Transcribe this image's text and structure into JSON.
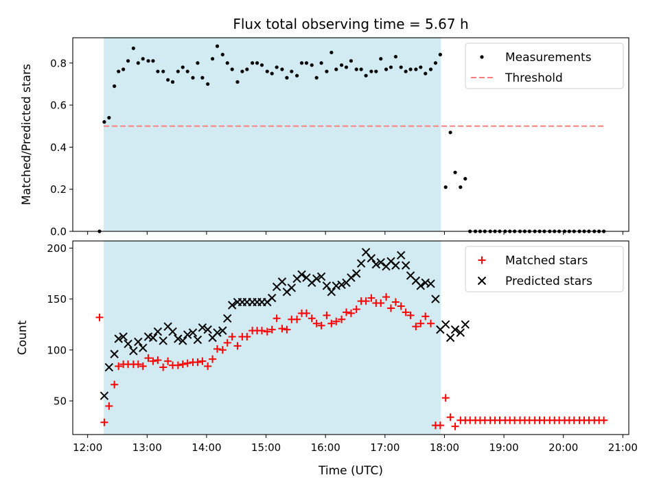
{
  "figure": {
    "title": "Flux total observing time = 5.67 h",
    "xlabel": "Time (UTC)"
  },
  "colors": {
    "span": "#add8e6",
    "measurements": "#000000",
    "threshold": "#ff7f7f",
    "matched": "#ff0000",
    "predicted": "#000000"
  },
  "chart_data": [
    {
      "type": "scatter",
      "panel": "top",
      "ylabel": "Matched/Predicted stars",
      "x_unit": "hours UTC",
      "xlim": [
        11.75,
        21.1
      ],
      "ylim": [
        0,
        0.92
      ],
      "xticks": [
        12,
        13,
        14,
        15,
        16,
        17,
        18,
        19,
        20,
        21
      ],
      "xtick_labels": [
        "12:00",
        "13:00",
        "14:00",
        "15:00",
        "16:00",
        "17:00",
        "18:00",
        "19:00",
        "20:00",
        "21:00"
      ],
      "yticks": [
        0.0,
        0.2,
        0.4,
        0.6,
        0.8
      ],
      "ytick_labels": [
        "0.0",
        "0.2",
        "0.4",
        "0.6",
        "0.8"
      ],
      "shaded_span": [
        12.27,
        17.94
      ],
      "legend": {
        "position": "upper right",
        "entries": [
          "Measurements",
          "Threshold"
        ]
      },
      "threshold": {
        "name": "Threshold",
        "y": 0.5,
        "x": [
          12.27,
          20.7
        ]
      },
      "series": [
        {
          "name": "Measurements",
          "marker": "dot",
          "x": [
            12.2,
            12.28,
            12.36,
            12.45,
            12.52,
            12.6,
            12.68,
            12.77,
            12.85,
            12.93,
            13.02,
            13.1,
            13.18,
            13.27,
            13.35,
            13.43,
            13.52,
            13.6,
            13.68,
            13.77,
            13.85,
            13.93,
            14.02,
            14.1,
            14.18,
            14.27,
            14.35,
            14.43,
            14.52,
            14.6,
            14.68,
            14.77,
            14.85,
            14.93,
            15.02,
            15.1,
            15.18,
            15.27,
            15.35,
            15.43,
            15.52,
            15.6,
            15.68,
            15.77,
            15.85,
            15.93,
            16.02,
            16.1,
            16.18,
            16.27,
            16.35,
            16.43,
            16.52,
            16.6,
            16.68,
            16.77,
            16.85,
            16.93,
            17.02,
            17.1,
            17.18,
            17.27,
            17.35,
            17.43,
            17.52,
            17.6,
            17.68,
            17.77,
            17.85,
            17.93,
            18.02,
            18.1,
            18.18,
            18.27,
            18.35,
            18.43,
            18.52,
            18.6,
            18.68,
            18.77,
            18.85,
            18.93,
            19.02,
            19.1,
            19.18,
            19.27,
            19.35,
            19.43,
            19.52,
            19.6,
            19.68,
            19.77,
            19.85,
            19.93,
            20.02,
            20.1,
            20.18,
            20.27,
            20.35,
            20.43,
            20.52,
            20.6,
            20.68
          ],
          "y": [
            0.0,
            0.52,
            0.54,
            0.69,
            0.76,
            0.77,
            0.81,
            0.87,
            0.8,
            0.82,
            0.81,
            0.81,
            0.76,
            0.76,
            0.72,
            0.71,
            0.76,
            0.78,
            0.76,
            0.73,
            0.8,
            0.73,
            0.7,
            0.82,
            0.88,
            0.84,
            0.8,
            0.77,
            0.71,
            0.76,
            0.77,
            0.8,
            0.8,
            0.79,
            0.76,
            0.75,
            0.78,
            0.77,
            0.73,
            0.76,
            0.74,
            0.8,
            0.8,
            0.79,
            0.73,
            0.8,
            0.76,
            0.85,
            0.77,
            0.79,
            0.78,
            0.81,
            0.77,
            0.77,
            0.74,
            0.76,
            0.76,
            0.82,
            0.77,
            0.78,
            0.83,
            0.78,
            0.76,
            0.77,
            0.77,
            0.78,
            0.75,
            0.77,
            0.8,
            0.84,
            0.21,
            0.47,
            0.28,
            0.21,
            0.25,
            0.0,
            0.0,
            0.0,
            0.0,
            0.0,
            0.0,
            0.0,
            0.0,
            0.0,
            0.0,
            0.0,
            0.0,
            0.0,
            0.0,
            0.0,
            0.0,
            0.0,
            0.0,
            0.0,
            0.0,
            0.0,
            0.0,
            0.0,
            0.0,
            0.0,
            0.0,
            0.0,
            0.0
          ]
        }
      ]
    },
    {
      "type": "scatter",
      "panel": "bottom",
      "ylabel": "Count",
      "x_unit": "hours UTC",
      "xlim": [
        11.75,
        21.1
      ],
      "ylim": [
        17,
        207
      ],
      "xticks": [
        12,
        13,
        14,
        15,
        16,
        17,
        18,
        19,
        20,
        21
      ],
      "xtick_labels": [
        "12:00",
        "13:00",
        "14:00",
        "15:00",
        "16:00",
        "17:00",
        "18:00",
        "19:00",
        "20:00",
        "21:00"
      ],
      "yticks": [
        50,
        100,
        150,
        200
      ],
      "ytick_labels": [
        "50",
        "100",
        "150",
        "200"
      ],
      "shaded_span": [
        12.27,
        17.94
      ],
      "legend": {
        "position": "upper right",
        "entries": [
          "Matched stars",
          "Predicted stars"
        ]
      },
      "series": [
        {
          "name": "Matched stars",
          "marker": "plus",
          "x": [
            12.2,
            12.28,
            12.36,
            12.45,
            12.52,
            12.6,
            12.68,
            12.77,
            12.85,
            12.93,
            13.02,
            13.1,
            13.18,
            13.27,
            13.35,
            13.43,
            13.52,
            13.6,
            13.68,
            13.77,
            13.85,
            13.93,
            14.02,
            14.1,
            14.18,
            14.27,
            14.35,
            14.43,
            14.52,
            14.6,
            14.68,
            14.77,
            14.85,
            14.93,
            15.02,
            15.1,
            15.18,
            15.27,
            15.35,
            15.43,
            15.52,
            15.6,
            15.68,
            15.77,
            15.85,
            15.93,
            16.02,
            16.1,
            16.18,
            16.27,
            16.35,
            16.43,
            16.52,
            16.6,
            16.68,
            16.77,
            16.85,
            16.93,
            17.02,
            17.1,
            17.18,
            17.27,
            17.35,
            17.43,
            17.52,
            17.6,
            17.68,
            17.77,
            17.85,
            17.93,
            18.02,
            18.1,
            18.18,
            18.27,
            18.35,
            18.43,
            18.52,
            18.6,
            18.68,
            18.77,
            18.85,
            18.93,
            19.02,
            19.1,
            19.18,
            19.27,
            19.35,
            19.43,
            19.52,
            19.6,
            19.68,
            19.77,
            19.85,
            19.93,
            20.02,
            20.1,
            20.18,
            20.27,
            20.35,
            20.43,
            20.52,
            20.6,
            20.68
          ],
          "y": [
            132,
            29,
            45,
            66,
            84,
            86,
            86,
            86,
            86,
            84,
            92,
            89,
            90,
            83,
            89,
            85,
            85,
            86,
            87,
            88,
            88,
            89,
            84,
            91,
            101,
            100,
            107,
            113,
            104,
            113,
            113,
            119,
            119,
            119,
            118,
            120,
            131,
            121,
            120,
            130,
            130,
            136,
            136,
            131,
            126,
            124,
            134,
            126,
            128,
            130,
            137,
            136,
            140,
            148,
            148,
            151,
            146,
            146,
            152,
            141,
            147,
            143,
            137,
            134,
            123,
            126,
            133,
            126,
            26,
            26,
            53,
            34,
            25,
            31,
            31,
            31,
            31,
            31,
            31,
            31,
            31,
            31,
            31,
            31,
            31,
            31,
            31,
            31,
            31,
            31,
            31,
            31,
            31,
            31,
            31,
            31,
            31,
            31,
            31,
            31,
            31,
            31,
            31
          ],
          "note": ""
        },
        {
          "name": "Predicted stars",
          "marker": "x",
          "x": [
            12.28,
            12.36,
            12.45,
            12.52,
            12.6,
            12.68,
            12.77,
            12.85,
            12.93,
            13.02,
            13.1,
            13.18,
            13.27,
            13.35,
            13.43,
            13.52,
            13.6,
            13.68,
            13.77,
            13.85,
            13.93,
            14.02,
            14.1,
            14.18,
            14.27,
            14.35,
            14.43,
            14.52,
            14.6,
            14.68,
            14.77,
            14.85,
            14.93,
            15.02,
            15.1,
            15.18,
            15.27,
            15.35,
            15.43,
            15.52,
            15.6,
            15.68,
            15.77,
            15.85,
            15.93,
            16.02,
            16.1,
            16.18,
            16.27,
            16.35,
            16.43,
            16.52,
            16.6,
            16.68,
            16.77,
            16.85,
            16.93,
            17.02,
            17.1,
            17.18,
            17.27,
            17.35,
            17.43,
            17.52,
            17.6,
            17.68,
            17.77,
            17.85,
            17.93,
            18.02,
            18.1,
            18.18,
            18.27,
            18.35
          ],
          "y": [
            55,
            83,
            96,
            111,
            113,
            106,
            99,
            108,
            102,
            113,
            112,
            118,
            109,
            123,
            118,
            111,
            109,
            115,
            117,
            110,
            122,
            120,
            112,
            117,
            119,
            131,
            144,
            147,
            147,
            147,
            147,
            147,
            147,
            147,
            151,
            162,
            167,
            157,
            161,
            170,
            174,
            171,
            166,
            170,
            172,
            163,
            157,
            163,
            164,
            166,
            171,
            175,
            185,
            196,
            190,
            184,
            186,
            182,
            187,
            183,
            193,
            183,
            173,
            168,
            163,
            166,
            165,
            150,
            120,
            125,
            112,
            120,
            117,
            125
          ]
        }
      ]
    }
  ]
}
